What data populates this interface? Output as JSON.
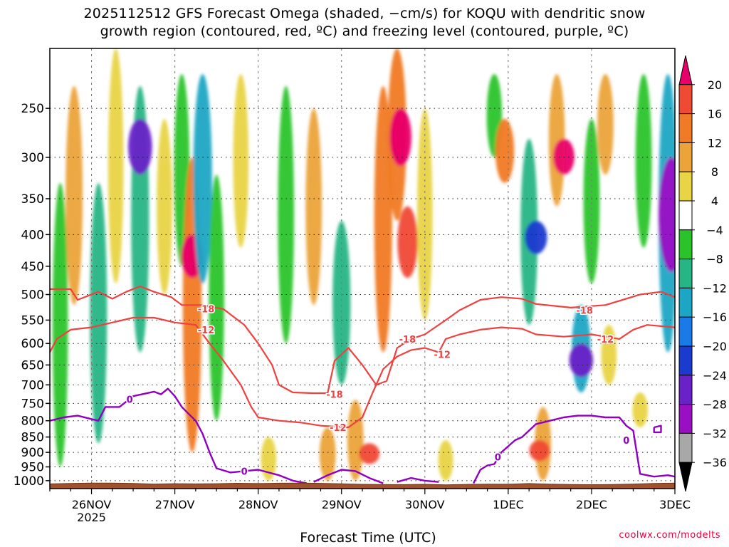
{
  "title_line1": "2025112512 GFS Forecast Omega (shaded, −cm/s) for KOQU with dendritic snow",
  "title_line2": "growth region (contoured, red, ºC) and freezing level (contoured, purple, ºC)",
  "credit": "coolwx.com/modelts",
  "chart_data": {
    "type": "heatmap",
    "title": "2025112512 GFS Forecast Omega (shaded, −cm/s) for KOQU with dendritic snow growth region (contoured, red, ºC) and freezing level (contoured, purple, ºC)",
    "xlabel": "Forecast Time (UTC)",
    "ylabel": "",
    "y_scale": "log-pressure",
    "y_axis_inverted": true,
    "ylim_hPa": [
      1030,
      200
    ],
    "y_ticks": [
      250,
      300,
      350,
      400,
      450,
      500,
      550,
      600,
      650,
      700,
      750,
      800,
      850,
      900,
      950,
      1000
    ],
    "x_ticks": [
      {
        "label": "26NOV",
        "sublabel": "2025",
        "hour": 12
      },
      {
        "label": "27NOV",
        "hour": 36
      },
      {
        "label": "28NOV",
        "hour": 60
      },
      {
        "label": "29NOV",
        "hour": 84
      },
      {
        "label": "30NOV",
        "hour": 108
      },
      {
        "label": "1DEC",
        "hour": 132
      },
      {
        "label": "2DEC",
        "hour": 156
      },
      {
        "label": "3DEC",
        "hour": 180
      }
    ],
    "xlim_hours": [
      0,
      180
    ],
    "grid": true,
    "colorbar": {
      "labels": [
        "20",
        "16",
        "12",
        "8",
        "4",
        "−4",
        "−8",
        "−12",
        "−16",
        "−20",
        "−24",
        "−28",
        "−32",
        "−36"
      ],
      "bins": [
        {
          "from": 20,
          "to": 24,
          "color": "#e8006a"
        },
        {
          "from": 16,
          "to": 20,
          "color": "#f04a35"
        },
        {
          "from": 12,
          "to": 16,
          "color": "#f07a25"
        },
        {
          "from": 8,
          "to": 12,
          "color": "#eba33a"
        },
        {
          "from": 4,
          "to": 8,
          "color": "#e8d445"
        },
        {
          "from": -4,
          "to": 4,
          "color": "#ffffff"
        },
        {
          "from": -8,
          "to": -4,
          "color": "#2ac42a"
        },
        {
          "from": -12,
          "to": -8,
          "color": "#26b585"
        },
        {
          "from": -16,
          "to": -12,
          "color": "#1aa6c4"
        },
        {
          "from": -20,
          "to": -16,
          "color": "#1a7ae8"
        },
        {
          "from": -24,
          "to": -20,
          "color": "#1a3ad0"
        },
        {
          "from": -28,
          "to": -24,
          "color": "#6a22c8"
        },
        {
          "from": -32,
          "to": -28,
          "color": "#9b0fc4"
        },
        {
          "from": -36,
          "to": -32,
          "color": "#a8a8a8"
        },
        {
          "from": -40,
          "to": -36,
          "color": "#000000"
        }
      ]
    },
    "omega_blobs": [
      {
        "hour": 3,
        "p_top": 330,
        "p_bot": 950,
        "value": -6
      },
      {
        "hour": 7,
        "p_top": 230,
        "p_bot": 520,
        "value": 10
      },
      {
        "hour": 14,
        "p_top": 330,
        "p_bot": 870,
        "value": -10
      },
      {
        "hour": 19,
        "p_top": 200,
        "p_bot": 480,
        "value": 6
      },
      {
        "hour": 26,
        "p_top": 230,
        "p_bot": 620,
        "value": -12
      },
      {
        "hour": 26,
        "p_top": 260,
        "p_bot": 320,
        "value": -26
      },
      {
        "hour": 33,
        "p_top": 260,
        "p_bot": 500,
        "value": 6
      },
      {
        "hour": 38,
        "p_top": 220,
        "p_bot": 450,
        "value": -6
      },
      {
        "hour": 41,
        "p_top": 300,
        "p_bot": 900,
        "value": 14
      },
      {
        "hour": 41,
        "p_top": 400,
        "p_bot": 470,
        "value": 22
      },
      {
        "hour": 44,
        "p_top": 220,
        "p_bot": 480,
        "value": -14
      },
      {
        "hour": 48,
        "p_top": 320,
        "p_bot": 800,
        "value": -6
      },
      {
        "hour": 55,
        "p_top": 220,
        "p_bot": 420,
        "value": 6
      },
      {
        "hour": 68,
        "p_top": 230,
        "p_bot": 600,
        "value": -8
      },
      {
        "hour": 76,
        "p_top": 250,
        "p_bot": 520,
        "value": 8
      },
      {
        "hour": 84,
        "p_top": 380,
        "p_bot": 700,
        "value": -12
      },
      {
        "hour": 88,
        "p_top": 740,
        "p_bot": 1000,
        "value": 8
      },
      {
        "hour": 92,
        "p_top": 870,
        "p_bot": 940,
        "value": 18
      },
      {
        "hour": 96,
        "p_top": 230,
        "p_bot": 620,
        "value": 12
      },
      {
        "hour": 100,
        "p_top": 200,
        "p_bot": 380,
        "value": 14
      },
      {
        "hour": 101,
        "p_top": 250,
        "p_bot": 310,
        "value": 21
      },
      {
        "hour": 103,
        "p_top": 360,
        "p_bot": 470,
        "value": 17
      },
      {
        "hour": 108,
        "p_top": 250,
        "p_bot": 550,
        "value": 6
      },
      {
        "hour": 80,
        "p_top": 820,
        "p_bot": 1000,
        "value": 8
      },
      {
        "hour": 63,
        "p_top": 850,
        "p_bot": 1000,
        "value": 6
      },
      {
        "hour": 114,
        "p_top": 860,
        "p_bot": 1000,
        "value": 5
      },
      {
        "hour": 128,
        "p_top": 220,
        "p_bot": 300,
        "value": -6
      },
      {
        "hour": 131,
        "p_top": 260,
        "p_bot": 330,
        "value": 14
      },
      {
        "hour": 138,
        "p_top": 280,
        "p_bot": 560,
        "value": -10
      },
      {
        "hour": 140,
        "p_top": 380,
        "p_bot": 430,
        "value": -22
      },
      {
        "hour": 142,
        "p_top": 760,
        "p_bot": 1000,
        "value": 8
      },
      {
        "hour": 141,
        "p_top": 860,
        "p_bot": 930,
        "value": 18
      },
      {
        "hour": 146,
        "p_top": 220,
        "p_bot": 360,
        "value": 8
      },
      {
        "hour": 148,
        "p_top": 280,
        "p_bot": 320,
        "value": 20
      },
      {
        "hour": 153,
        "p_top": 520,
        "p_bot": 720,
        "value": -14
      },
      {
        "hour": 153,
        "p_top": 600,
        "p_bot": 680,
        "value": -26
      },
      {
        "hour": 156,
        "p_top": 260,
        "p_bot": 480,
        "value": -8
      },
      {
        "hour": 160,
        "p_top": 220,
        "p_bot": 320,
        "value": 8
      },
      {
        "hour": 161,
        "p_top": 560,
        "p_bot": 700,
        "value": 6
      },
      {
        "hour": 171,
        "p_top": 220,
        "p_bot": 420,
        "value": -8
      },
      {
        "hour": 170,
        "p_top": 720,
        "p_bot": 820,
        "value": 6
      },
      {
        "hour": 178,
        "p_top": 220,
        "p_bot": 620,
        "value": -14
      },
      {
        "hour": 179,
        "p_top": 300,
        "p_bot": 460,
        "value": -30
      }
    ],
    "dgz_contours": [
      {
        "label": "-18",
        "color": "#f04040",
        "points": [
          [
            0,
            490
          ],
          [
            6,
            490
          ],
          [
            8,
            510
          ],
          [
            14,
            495
          ],
          [
            18,
            508
          ],
          [
            22,
            495
          ],
          [
            26,
            485
          ],
          [
            30,
            495
          ],
          [
            35,
            505
          ],
          [
            38,
            520
          ],
          [
            44,
            520
          ],
          [
            50,
            528
          ],
          [
            56,
            560
          ],
          [
            60,
            600
          ],
          [
            64,
            650
          ],
          [
            66,
            700
          ],
          [
            70,
            720
          ],
          [
            76,
            722
          ],
          [
            80,
            722
          ],
          [
            82,
            640
          ],
          [
            86,
            610
          ],
          [
            90,
            650
          ],
          [
            94,
            700
          ],
          [
            97,
            690
          ],
          [
            100,
            610
          ],
          [
            104,
            590
          ],
          [
            108,
            580
          ],
          [
            114,
            550
          ],
          [
            118,
            530
          ],
          [
            124,
            510
          ],
          [
            130,
            505
          ],
          [
            136,
            508
          ],
          [
            140,
            518
          ],
          [
            150,
            525
          ],
          [
            160,
            520
          ],
          [
            170,
            500
          ],
          [
            176,
            495
          ],
          [
            180,
            505
          ]
        ],
        "labels": [
          {
            "hour": 45,
            "p": 527,
            "text": "-18"
          },
          {
            "hour": 82,
            "p": 725,
            "text": "-18"
          },
          {
            "hour": 103,
            "p": 590,
            "text": "-18"
          },
          {
            "hour": 154,
            "p": 530,
            "text": "-18"
          }
        ]
      },
      {
        "label": "-12",
        "color": "#f04040",
        "points": [
          [
            0,
            620
          ],
          [
            2,
            590
          ],
          [
            6,
            570
          ],
          [
            12,
            565
          ],
          [
            18,
            555
          ],
          [
            24,
            545
          ],
          [
            30,
            545
          ],
          [
            36,
            555
          ],
          [
            42,
            560
          ],
          [
            46,
            600
          ],
          [
            50,
            640
          ],
          [
            55,
            700
          ],
          [
            58,
            760
          ],
          [
            60,
            790
          ],
          [
            66,
            800
          ],
          [
            72,
            805
          ],
          [
            78,
            815
          ],
          [
            86,
            820
          ],
          [
            90,
            790
          ],
          [
            93,
            720
          ],
          [
            96,
            660
          ],
          [
            100,
            630
          ],
          [
            104,
            615
          ],
          [
            108,
            610
          ],
          [
            112,
            620
          ],
          [
            114,
            590
          ],
          [
            118,
            580
          ],
          [
            124,
            570
          ],
          [
            130,
            565
          ],
          [
            136,
            568
          ],
          [
            140,
            580
          ],
          [
            148,
            585
          ],
          [
            156,
            580
          ],
          [
            164,
            590
          ],
          [
            168,
            570
          ],
          [
            172,
            560
          ],
          [
            180,
            565
          ]
        ],
        "labels": [
          {
            "hour": 45,
            "p": 570,
            "text": "-12"
          },
          {
            "hour": 83,
            "p": 820,
            "text": "-12"
          },
          {
            "hour": 113,
            "p": 625,
            "text": "-12"
          },
          {
            "hour": 160,
            "p": 590,
            "text": "-12"
          }
        ]
      }
    ],
    "freezing_level": {
      "label": "0",
      "color": "#9000c0",
      "segments": [
        [
          [
            0,
            800
          ],
          [
            4,
            790
          ],
          [
            8,
            785
          ],
          [
            12,
            795
          ],
          [
            14,
            800
          ],
          [
            16,
            760
          ],
          [
            20,
            760
          ],
          [
            22,
            745
          ],
          [
            24,
            730
          ],
          [
            30,
            718
          ],
          [
            32,
            725
          ],
          [
            34,
            710
          ],
          [
            36,
            730
          ],
          [
            38,
            760
          ],
          [
            40,
            780
          ],
          [
            42,
            800
          ],
          [
            44,
            840
          ],
          [
            46,
            900
          ],
          [
            48,
            955
          ],
          [
            52,
            970
          ],
          [
            56,
            965
          ],
          [
            60,
            960
          ],
          [
            66,
            980
          ],
          [
            70,
            1000
          ],
          [
            74,
            1010
          ]
        ],
        [
          [
            76,
            1005
          ],
          [
            80,
            980
          ],
          [
            84,
            960
          ],
          [
            88,
            965
          ],
          [
            92,
            990
          ],
          [
            96,
            1010
          ]
        ],
        [
          [
            100,
            1005
          ],
          [
            104,
            990
          ],
          [
            108,
            1000
          ],
          [
            112,
            1005
          ]
        ],
        [
          [
            122,
            1010
          ],
          [
            124,
            960
          ],
          [
            126,
            945
          ],
          [
            128,
            940
          ],
          [
            130,
            900
          ],
          [
            134,
            860
          ],
          [
            136,
            850
          ],
          [
            140,
            810
          ],
          [
            144,
            800
          ],
          [
            148,
            790
          ],
          [
            152,
            785
          ],
          [
            156,
            785
          ],
          [
            160,
            790
          ],
          [
            164,
            790
          ],
          [
            166,
            815
          ],
          [
            168,
            830
          ],
          [
            169,
            900
          ],
          [
            170,
            975
          ],
          [
            174,
            985
          ],
          [
            178,
            980
          ],
          [
            180,
            985
          ]
        ],
        [
          [
            174,
            820
          ],
          [
            176,
            815
          ],
          [
            176,
            835
          ],
          [
            174,
            835
          ],
          [
            174,
            820
          ]
        ]
      ],
      "labels": [
        {
          "hour": 23,
          "p": 738,
          "text": "0"
        },
        {
          "hour": 56,
          "p": 965,
          "text": "0"
        },
        {
          "hour": 129,
          "p": 915,
          "text": "0"
        },
        {
          "hour": 166,
          "p": 860,
          "text": "0"
        }
      ]
    },
    "terrain_color": "#a0522d"
  }
}
